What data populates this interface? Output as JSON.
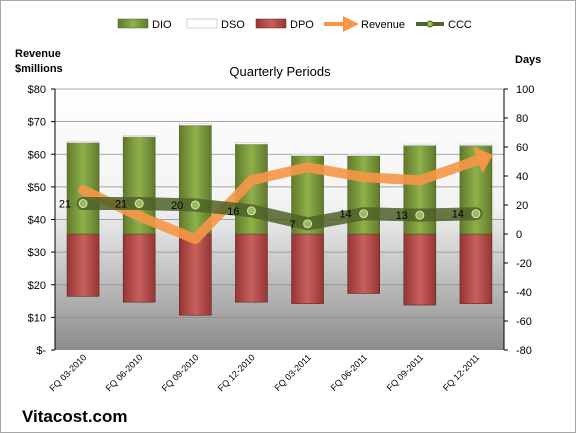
{
  "chart_data": {
    "type": "bar",
    "title": "Quarterly Periods",
    "brand": "Vitacost.com",
    "categories": [
      "FQ 03-2010",
      "FQ 06-2010",
      "FQ 09-2010",
      "FQ 12-2010",
      "FQ 03-2011",
      "FQ 06-2011",
      "FQ 09-2011",
      "FQ 12-2011"
    ],
    "left_axis": {
      "label_line1": "Revenue",
      "label_line2": "$millions",
      "range": [
        0,
        80
      ],
      "ticks": [
        "$-",
        "$10",
        "$20",
        "$30",
        "$40",
        "$50",
        "$60",
        "$70",
        "$80"
      ]
    },
    "right_axis": {
      "label": "Days",
      "range": [
        -80,
        100
      ],
      "ticks": [
        "-80",
        "-60",
        "-40",
        "-20",
        "0",
        "20",
        "40",
        "60",
        "80",
        "100"
      ]
    },
    "series": [
      {
        "name": "DIO",
        "kind": "bar",
        "axis": "right",
        "color": "#77933c",
        "values": [
          63,
          67,
          75,
          62,
          54,
          54,
          61,
          61
        ]
      },
      {
        "name": "DSO",
        "kind": "bar",
        "axis": "right",
        "color": "#ffffff",
        "values": [
          1,
          1,
          1,
          1,
          1,
          1,
          1,
          1
        ]
      },
      {
        "name": "DPO",
        "kind": "bar",
        "axis": "right",
        "color": "#c0504d",
        "values": [
          -43,
          -47,
          -56,
          -47,
          -48,
          -41,
          -49,
          -48
        ]
      },
      {
        "name": "Revenue",
        "kind": "line",
        "axis": "left",
        "color": "#f79646",
        "values": [
          49,
          41,
          34,
          52,
          56,
          53,
          52,
          58
        ]
      },
      {
        "name": "CCC",
        "kind": "line",
        "axis": "right",
        "color": "#4f6228",
        "values": [
          21,
          21,
          20,
          16,
          7,
          14,
          13,
          14
        ]
      }
    ]
  }
}
